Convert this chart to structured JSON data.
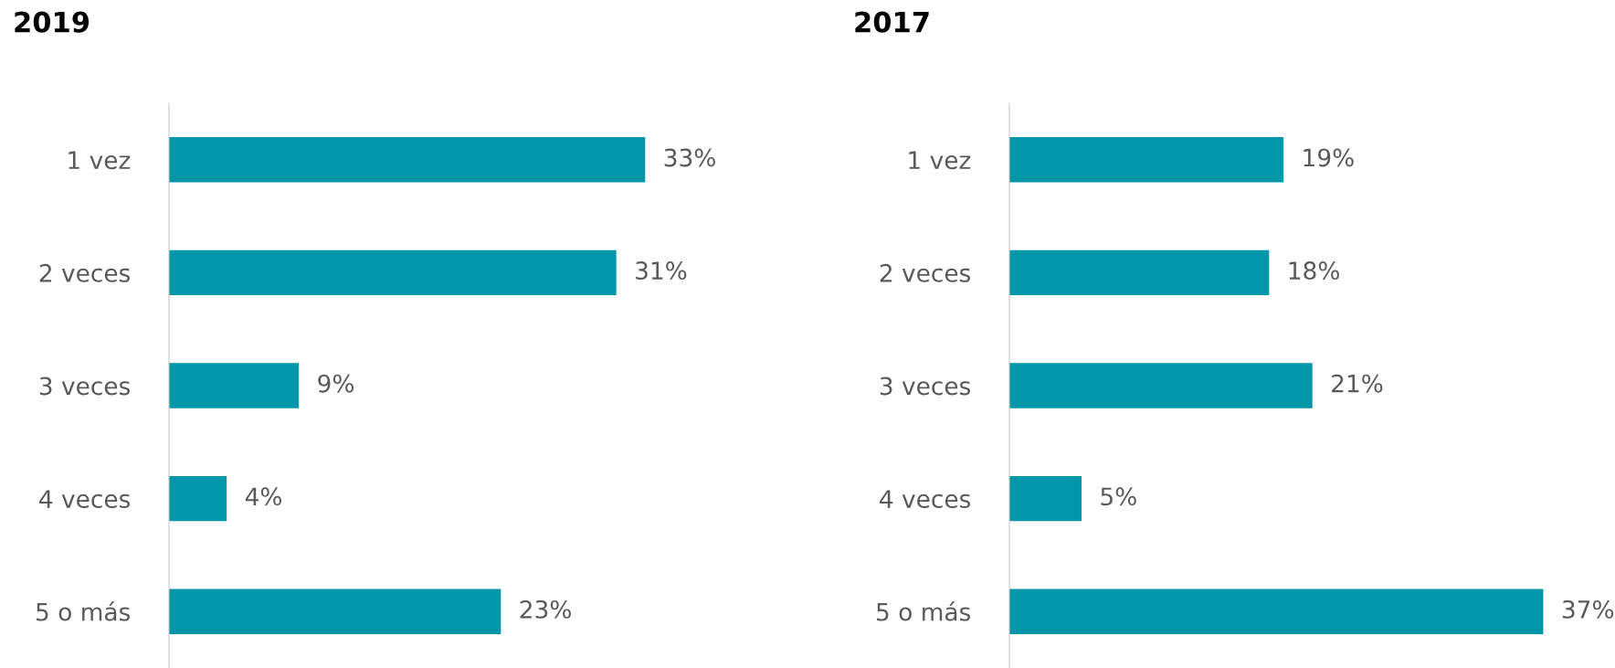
{
  "chart_data": [
    {
      "type": "bar",
      "orientation": "horizontal",
      "title": "2019",
      "categories": [
        "1 vez",
        "2 veces",
        "3 veces",
        "4 veces",
        "5 o más"
      ],
      "values": [
        33,
        31,
        9,
        4,
        23
      ],
      "color": "#0297a8",
      "data_labels": true,
      "value_labels": [
        "33%",
        "31%",
        "9%",
        "4%",
        "23%"
      ],
      "tick_labels": "y",
      "grid": false,
      "legend": false
    },
    {
      "type": "bar",
      "orientation": "horizontal",
      "title": "2017",
      "categories": [
        "1 vez",
        "2 veces",
        "3 veces",
        "4 veces",
        "5 o más"
      ],
      "values": [
        19,
        18,
        21,
        5,
        37
      ],
      "color": "#0297a8",
      "data_labels": true,
      "value_labels": [
        "19%",
        "18%",
        "21%",
        "5%",
        "37%"
      ],
      "tick_labels": "y",
      "grid": false,
      "legend": false
    }
  ]
}
